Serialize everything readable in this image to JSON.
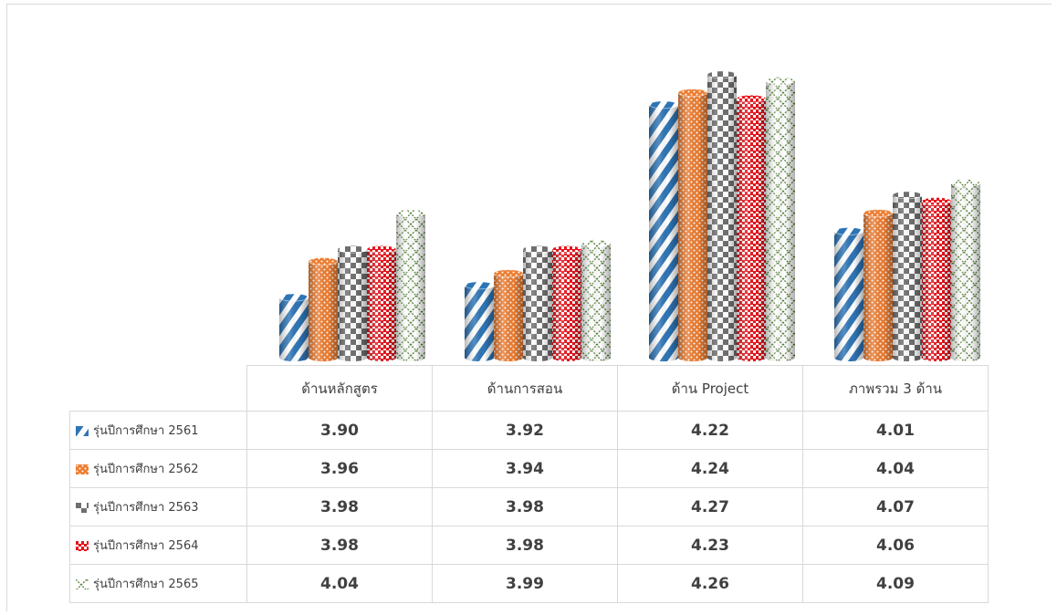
{
  "chart_data": {
    "type": "bar",
    "style": "3d cylinder clustered columns with patterned fills and data table",
    "title": "",
    "xlabel": "",
    "ylabel": "",
    "categories": [
      "ด้านหลักสูตร",
      "ด้านการสอน",
      "ด้าน Project",
      "ภาพรวม 3 ด้าน"
    ],
    "series": [
      {
        "name": "รุ่นปีการศึกษา 2561",
        "values": [
          3.9,
          3.92,
          4.22,
          4.01
        ],
        "values_text": [
          "3.90",
          "3.92",
          "4.22",
          "4.01"
        ],
        "color": "#2e75b6",
        "pattern": "diagonal-stripes"
      },
      {
        "name": "รุ่นปีการศึกษา 2562",
        "values": [
          3.96,
          3.94,
          4.24,
          4.04
        ],
        "values_text": [
          "3.96",
          "3.94",
          "4.24",
          "4.04"
        ],
        "color": "#ed7d31",
        "pattern": "dots"
      },
      {
        "name": "รุ่นปีการศึกษา 2563",
        "values": [
          3.98,
          3.98,
          4.27,
          4.07
        ],
        "values_text": [
          "3.98",
          "3.98",
          "4.27",
          "4.07"
        ],
        "color": "#7f7f7f",
        "pattern": "checkerboard"
      },
      {
        "name": "รุ่นปีการศึกษา 2564",
        "values": [
          3.98,
          3.98,
          4.23,
          4.06
        ],
        "values_text": [
          "3.98",
          "3.98",
          "4.23",
          "4.06"
        ],
        "color": "#e8141c",
        "pattern": "small-checks"
      },
      {
        "name": "รุ่นปีการศึกษา 2565",
        "values": [
          4.04,
          3.99,
          4.26,
          4.09
        ],
        "values_text": [
          "4.04",
          "3.99",
          "4.26",
          "4.09"
        ],
        "color": "#548235",
        "pattern": "diagonal-lattice"
      }
    ],
    "axis_visible": false,
    "grid": false,
    "legend": "data table rows"
  }
}
